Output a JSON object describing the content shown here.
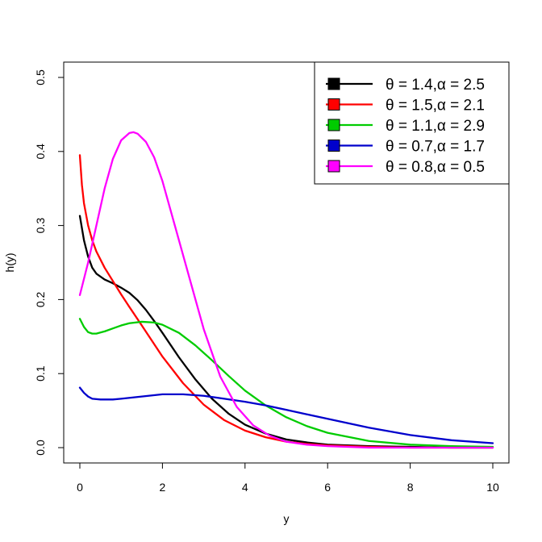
{
  "chart_data": {
    "type": "line",
    "xlabel": "y",
    "ylabel": "h(y)",
    "xlim": [
      0,
      10
    ],
    "ylim": [
      0,
      0.5
    ],
    "x_ticks": [
      "0",
      "2",
      "4",
      "6",
      "8",
      "10"
    ],
    "y_ticks": [
      "0.0",
      "0.1",
      "0.2",
      "0.3",
      "0.4",
      "0.5"
    ],
    "grid": false,
    "legend_position": "top-right",
    "series": [
      {
        "name": "θ = 1.4,α = 2.5",
        "color": "#000000",
        "x": [
          0,
          0.1,
          0.2,
          0.3,
          0.4,
          0.6,
          0.8,
          1.0,
          1.2,
          1.4,
          1.6,
          1.8,
          2.0,
          2.4,
          2.8,
          3.2,
          3.6,
          4.0,
          4.5,
          5.0,
          5.5,
          6.0,
          7.0,
          8.0,
          9.0,
          10.0
        ],
        "y": [
          0.313,
          0.28,
          0.258,
          0.243,
          0.235,
          0.227,
          0.222,
          0.216,
          0.209,
          0.199,
          0.186,
          0.171,
          0.155,
          0.122,
          0.092,
          0.066,
          0.046,
          0.031,
          0.019,
          0.011,
          0.007,
          0.004,
          0.002,
          0.001,
          0.0,
          0.0
        ]
      },
      {
        "name": "θ = 1.5,α = 2.1",
        "color": "#ff0000",
        "x": [
          0,
          0.05,
          0.1,
          0.2,
          0.3,
          0.4,
          0.6,
          0.8,
          1.0,
          1.2,
          1.5,
          2.0,
          2.5,
          3.0,
          3.5,
          4.0,
          4.5,
          5.0,
          5.5,
          6.0,
          7.0,
          8.0,
          10.0
        ],
        "y": [
          0.395,
          0.355,
          0.33,
          0.3,
          0.28,
          0.265,
          0.243,
          0.225,
          0.207,
          0.19,
          0.165,
          0.123,
          0.087,
          0.058,
          0.037,
          0.023,
          0.014,
          0.008,
          0.005,
          0.003,
          0.001,
          0.0,
          0.0
        ]
      },
      {
        "name": "θ = 1.1,α = 2.9",
        "color": "#00cc00",
        "x": [
          0,
          0.1,
          0.2,
          0.3,
          0.4,
          0.6,
          0.8,
          1.0,
          1.2,
          1.5,
          1.8,
          2.0,
          2.4,
          2.8,
          3.2,
          3.6,
          4.0,
          4.5,
          5.0,
          5.5,
          6.0,
          7.0,
          8.0,
          9.0,
          10.0
        ],
        "y": [
          0.174,
          0.163,
          0.156,
          0.154,
          0.154,
          0.157,
          0.161,
          0.165,
          0.168,
          0.17,
          0.169,
          0.166,
          0.155,
          0.138,
          0.118,
          0.097,
          0.077,
          0.057,
          0.041,
          0.029,
          0.02,
          0.009,
          0.004,
          0.002,
          0.001
        ]
      },
      {
        "name": "θ = 0.7,α = 1.7",
        "color": "#0000cc",
        "x": [
          0,
          0.1,
          0.2,
          0.3,
          0.5,
          0.8,
          1.0,
          1.5,
          2.0,
          2.5,
          3.0,
          3.5,
          4.0,
          4.5,
          5.0,
          5.5,
          6.0,
          7.0,
          8.0,
          9.0,
          10.0
        ],
        "y": [
          0.081,
          0.074,
          0.069,
          0.066,
          0.065,
          0.065,
          0.066,
          0.069,
          0.072,
          0.072,
          0.07,
          0.066,
          0.062,
          0.057,
          0.051,
          0.045,
          0.039,
          0.027,
          0.017,
          0.01,
          0.006
        ]
      },
      {
        "name": "θ = 0.8,α = 0.5",
        "color": "#ff00ff",
        "x": [
          0,
          0.2,
          0.4,
          0.6,
          0.8,
          1.0,
          1.2,
          1.3,
          1.4,
          1.6,
          1.8,
          2.0,
          2.3,
          2.6,
          3.0,
          3.4,
          3.8,
          4.2,
          4.6,
          5.0,
          5.5,
          6.0,
          7.0,
          8.0,
          10.0
        ],
        "y": [
          0.206,
          0.25,
          0.3,
          0.35,
          0.39,
          0.415,
          0.425,
          0.426,
          0.424,
          0.413,
          0.392,
          0.36,
          0.3,
          0.24,
          0.16,
          0.096,
          0.055,
          0.03,
          0.016,
          0.008,
          0.004,
          0.002,
          0.0,
          0.0,
          0.0
        ]
      }
    ]
  }
}
